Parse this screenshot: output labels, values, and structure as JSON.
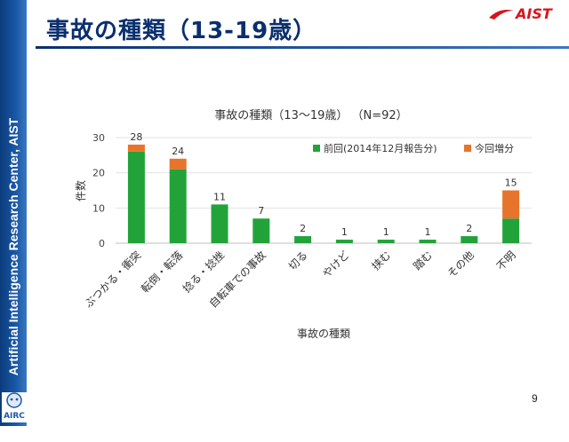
{
  "slide": {
    "title": "事故の種類（13-19歳）",
    "sidebar_text": "Artificial Intelligence Research Center, AIST",
    "logo_text": "AIST",
    "airc_text": "AIRC",
    "page_number": "9"
  },
  "colors": {
    "previous": "#22a33a",
    "increase": "#e8732a",
    "title": "#0a2f6e",
    "brand_red": "#d9141c"
  },
  "chart_data": {
    "type": "bar",
    "stacked": true,
    "title": "事故の種類（13〜19歳） （N=92）",
    "xlabel": "事故の種類",
    "ylabel": "件数",
    "ylim": [
      0,
      30
    ],
    "yticks": [
      "0",
      "10",
      "20",
      "30"
    ],
    "grid": true,
    "legend_position": "top-right",
    "categories": [
      "ぶつかる・衝突",
      "転倒・転落",
      "捻る・捻挫",
      "自転車での事故",
      "切る",
      "やけど",
      "挟む",
      "踏む",
      "その他",
      "不明"
    ],
    "series": [
      {
        "name": "前回(2014年12月報告分)",
        "values": [
          26,
          21,
          11,
          7,
          2,
          1,
          1,
          1,
          2,
          7
        ]
      },
      {
        "name": "今回増分",
        "values": [
          2,
          3,
          0,
          0,
          0,
          0,
          0,
          0,
          0,
          8
        ]
      }
    ],
    "totals": [
      "28",
      "24",
      "11",
      "7",
      "2",
      "1",
      "1",
      "1",
      "2",
      "15"
    ]
  }
}
